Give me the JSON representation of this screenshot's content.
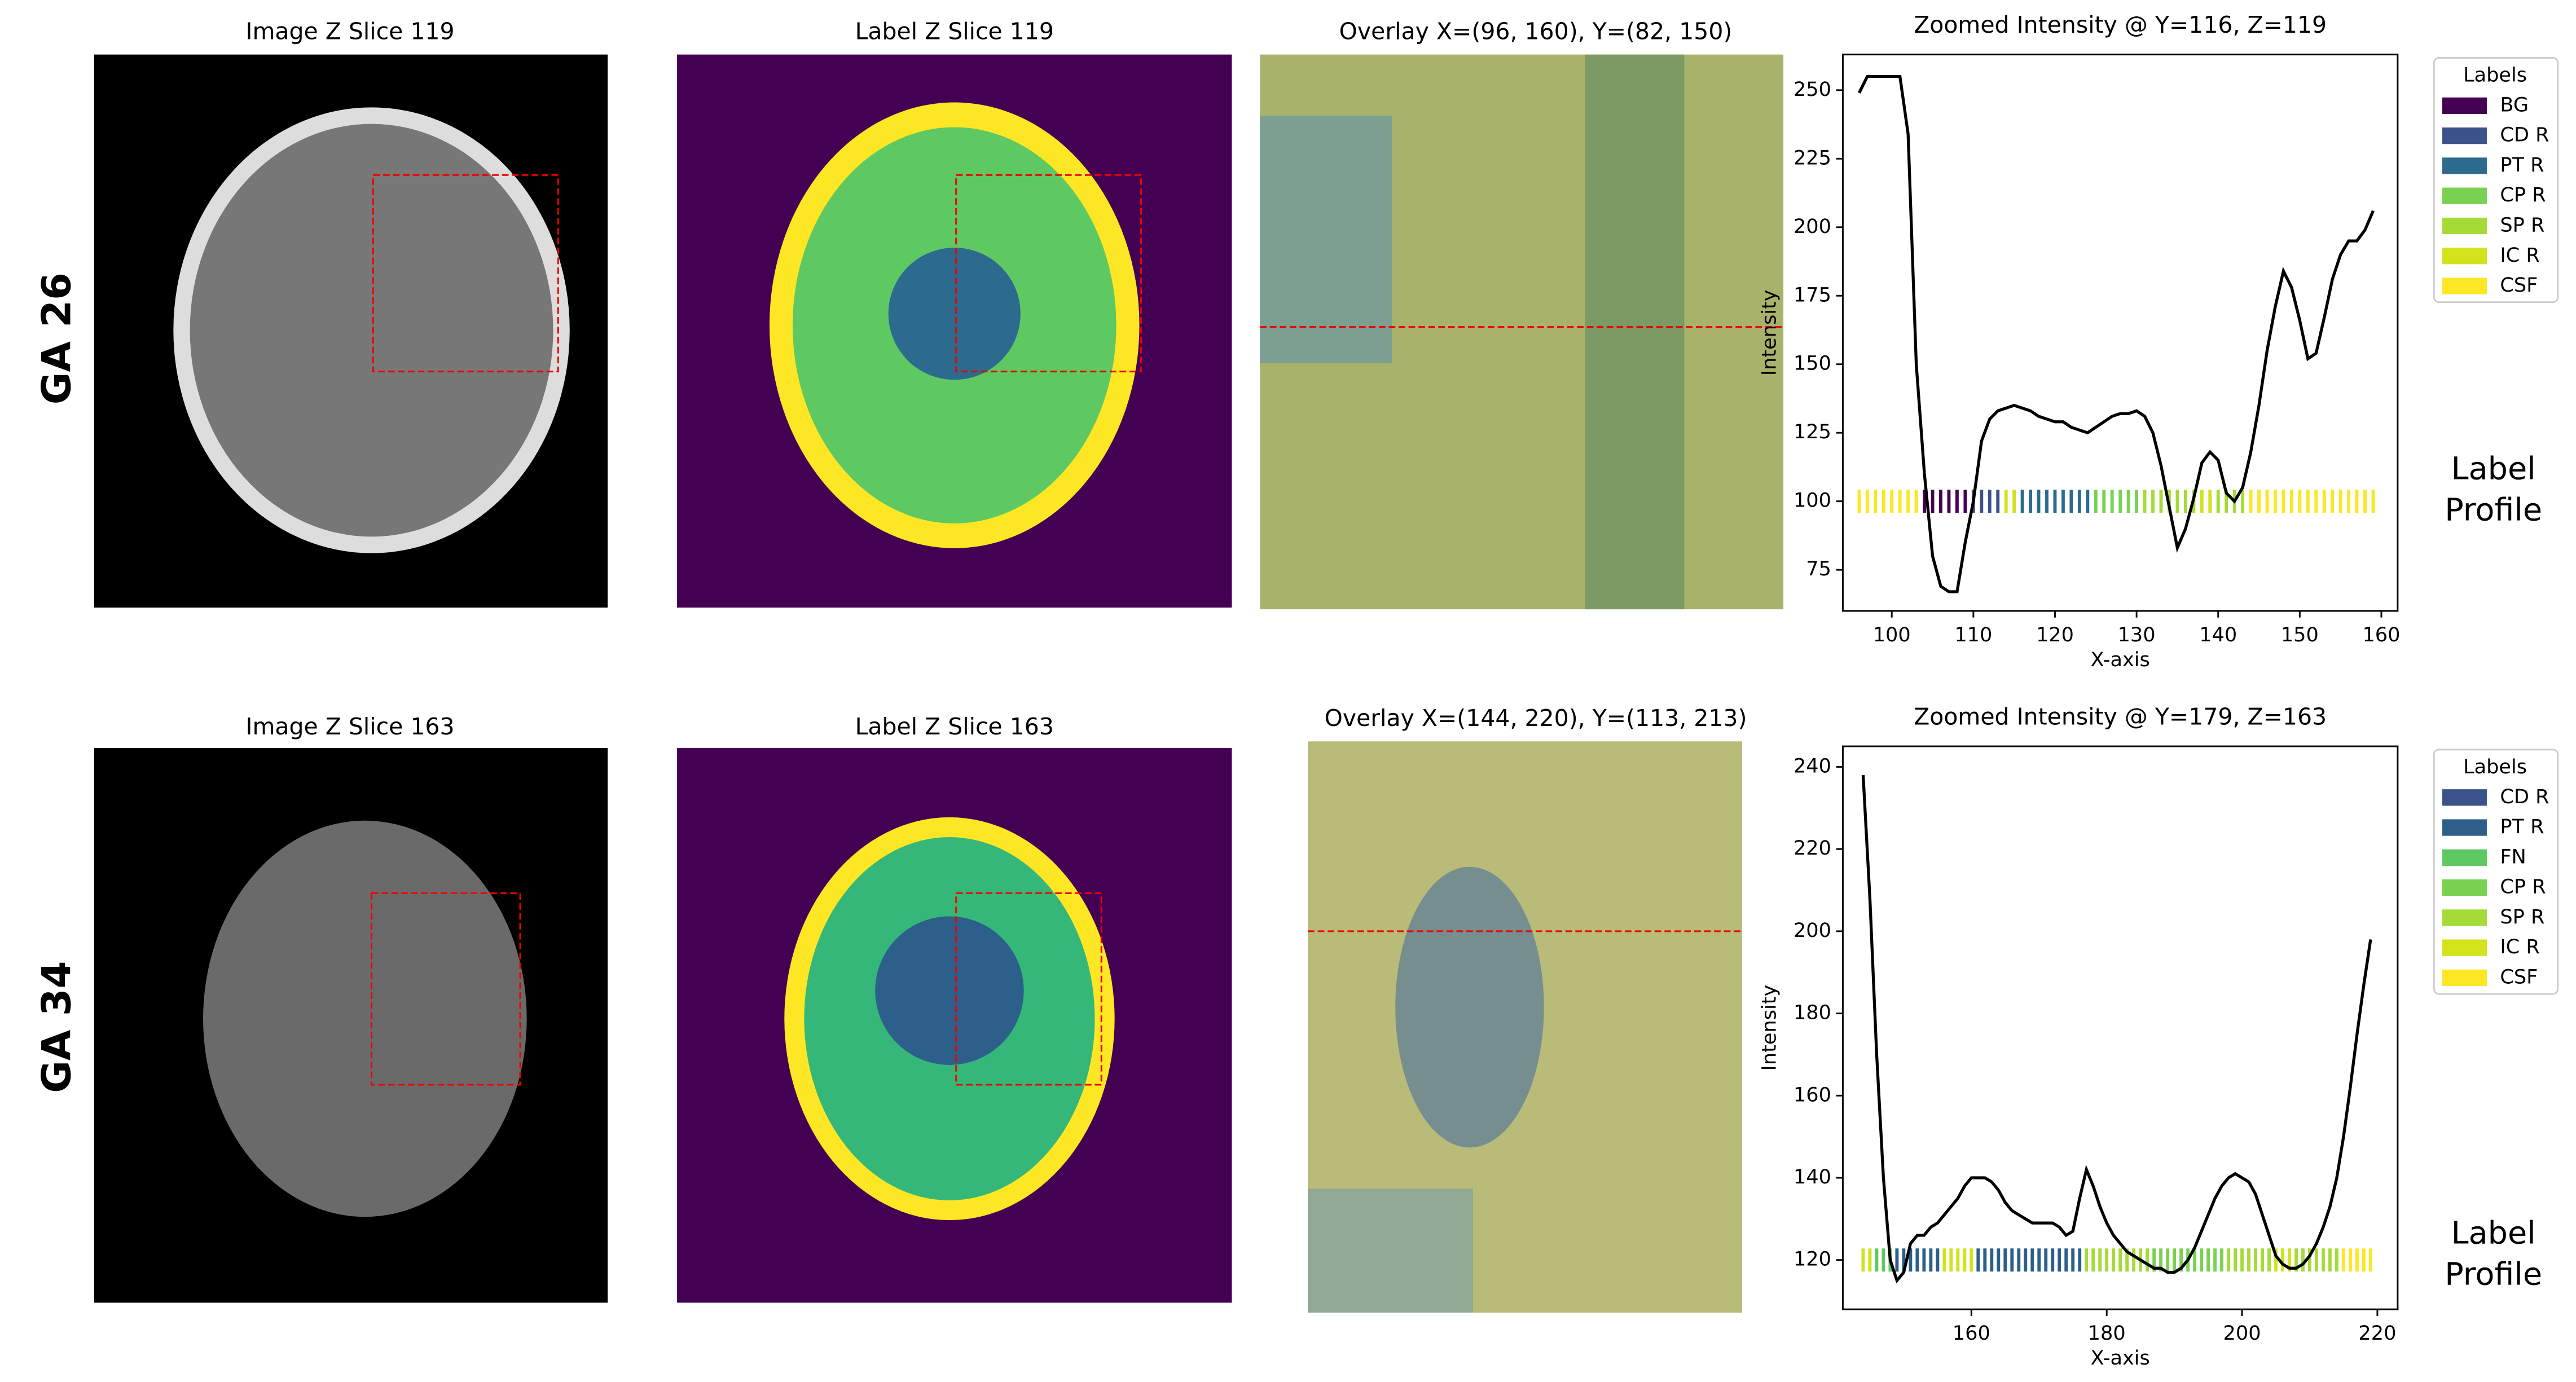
{
  "rows": [
    {
      "row_label": "GA 26",
      "image_title": "Image Z Slice 119",
      "label_title": "Label Z Slice 119",
      "overlay_title": "Overlay X=(96, 160), Y=(82, 150)",
      "side_label": [
        "Label",
        "Profile"
      ]
    },
    {
      "row_label": "GA 34",
      "image_title": "Image Z Slice 163",
      "label_title": "Label Z Slice 163",
      "overlay_title": "Overlay X=(144, 220), Y=(113, 213)",
      "side_label": [
        "Label",
        "Profile"
      ]
    }
  ],
  "chart_data": [
    {
      "type": "line",
      "title": "Zoomed Intensity @ Y=116, Z=119",
      "xlabel": "X-axis",
      "ylabel": "Intensity",
      "x": [
        96,
        97,
        98,
        99,
        100,
        101,
        102,
        103,
        104,
        105,
        106,
        107,
        108,
        109,
        110,
        111,
        112,
        113,
        114,
        115,
        116,
        117,
        118,
        119,
        120,
        121,
        122,
        123,
        124,
        125,
        126,
        127,
        128,
        129,
        130,
        131,
        132,
        133,
        134,
        135,
        136,
        137,
        138,
        139,
        140,
        141,
        142,
        143,
        144,
        145,
        146,
        147,
        148,
        149,
        150,
        151,
        152,
        153,
        154,
        155,
        156,
        157,
        158,
        159
      ],
      "series": [
        {
          "color": "#000000",
          "values": [
            249,
            255,
            255,
            255,
            255,
            255,
            234,
            150,
            110,
            80,
            69,
            67,
            67,
            85,
            100,
            122,
            130,
            133,
            134,
            135,
            134,
            133,
            131,
            130,
            129,
            129,
            127,
            126,
            125,
            127,
            129,
            131,
            132,
            132,
            133,
            131,
            125,
            113,
            98,
            83,
            90,
            101,
            114,
            118,
            115,
            103,
            100,
            105,
            118,
            135,
            155,
            171,
            184,
            178,
            166,
            152,
            154,
            167,
            181,
            190,
            195,
            195,
            199,
            206
          ]
        }
      ],
      "xlim": [
        94,
        162
      ],
      "xticks": [
        100,
        110,
        120,
        130,
        140,
        150,
        160
      ],
      "ylim": [
        60,
        263
      ],
      "yticks": [
        75,
        100,
        125,
        150,
        175,
        200,
        225,
        250
      ],
      "legend_title": "Labels",
      "legend": [
        {
          "name": "BG",
          "color": "#440154"
        },
        {
          "name": "CD R",
          "color": "#3b528b"
        },
        {
          "name": "PT R",
          "color": "#2c6a8e"
        },
        {
          "name": "CP R",
          "color": "#7ad151"
        },
        {
          "name": "SP R",
          "color": "#a5db36"
        },
        {
          "name": "IC R",
          "color": "#d2e21b"
        },
        {
          "name": "CSF",
          "color": "#fde725"
        }
      ],
      "profile_y": 100,
      "profile": [
        "CSF",
        "CSF",
        "CSF",
        "CSF",
        "CSF",
        "CSF",
        "CSF",
        "CSF",
        "BG",
        "BG",
        "BG",
        "BG",
        "BG",
        "BG",
        "CD R",
        "CD R",
        "CD R",
        "CD R",
        "IC R",
        "IC R",
        "PT R",
        "PT R",
        "PT R",
        "PT R",
        "PT R",
        "PT R",
        "PT R",
        "PT R",
        "PT R",
        "CP R",
        "CP R",
        "CP R",
        "CP R",
        "CP R",
        "CP R",
        "SP R",
        "SP R",
        "SP R",
        "SP R",
        "SP R",
        "SP R",
        "SP R",
        "IC R",
        "IC R",
        "SP R",
        "SP R",
        "SP R",
        "SP R",
        "CSF",
        "CSF",
        "CSF",
        "CSF",
        "CSF",
        "CSF",
        "CSF",
        "CSF",
        "CSF",
        "CSF",
        "CSF",
        "CSF",
        "CSF",
        "CSF",
        "CSF",
        "CSF"
      ]
    },
    {
      "type": "line",
      "title": "Zoomed Intensity @ Y=179, Z=163",
      "xlabel": "X-axis",
      "ylabel": "Intensity",
      "x": [
        144,
        145,
        146,
        147,
        148,
        149,
        150,
        151,
        152,
        153,
        154,
        155,
        156,
        157,
        158,
        159,
        160,
        161,
        162,
        163,
        164,
        165,
        166,
        167,
        168,
        169,
        170,
        171,
        172,
        173,
        174,
        175,
        176,
        177,
        178,
        179,
        180,
        181,
        182,
        183,
        184,
        185,
        186,
        187,
        188,
        189,
        190,
        191,
        192,
        193,
        194,
        195,
        196,
        197,
        198,
        199,
        200,
        201,
        202,
        203,
        204,
        205,
        206,
        207,
        208,
        209,
        210,
        211,
        212,
        213,
        214,
        215,
        216,
        217,
        218,
        219
      ],
      "series": [
        {
          "color": "#000000",
          "values": [
            238,
            208,
            170,
            140,
            120,
            115,
            117,
            124,
            126,
            126,
            128,
            129,
            131,
            133,
            135,
            138,
            140,
            140,
            140,
            139,
            137,
            134,
            132,
            131,
            130,
            129,
            129,
            129,
            129,
            128,
            126,
            127,
            135,
            142,
            138,
            133,
            129,
            126,
            124,
            122,
            121,
            120,
            119,
            118,
            118,
            117,
            117,
            118,
            120,
            123,
            127,
            131,
            135,
            138,
            140,
            141,
            140,
            139,
            136,
            131,
            126,
            121,
            119,
            118,
            118,
            119,
            121,
            124,
            128,
            133,
            140,
            150,
            162,
            175,
            187,
            198
          ]
        }
      ],
      "xlim": [
        141,
        223
      ],
      "xticks": [
        160,
        180,
        200,
        220
      ],
      "ylim": [
        108,
        245
      ],
      "yticks": [
        120,
        140,
        160,
        180,
        200,
        220,
        240
      ],
      "legend_title": "Labels",
      "legend": [
        {
          "name": "CD R",
          "color": "#3b528b"
        },
        {
          "name": "PT R",
          "color": "#2c5f8a"
        },
        {
          "name": "FN",
          "color": "#5ec962"
        },
        {
          "name": "CP R",
          "color": "#7ad151"
        },
        {
          "name": "SP R",
          "color": "#a5db36"
        },
        {
          "name": "IC R",
          "color": "#d2e21b"
        },
        {
          "name": "CSF",
          "color": "#fde725"
        }
      ],
      "profile_y": 120,
      "profile": [
        "IC R",
        "IC R",
        "FN",
        "FN",
        "FN",
        "PT R",
        "PT R",
        "PT R",
        "PT R",
        "PT R",
        "PT R",
        "PT R",
        "IC R",
        "IC R",
        "IC R",
        "IC R",
        "IC R",
        "PT R",
        "PT R",
        "PT R",
        "PT R",
        "PT R",
        "PT R",
        "PT R",
        "PT R",
        "PT R",
        "PT R",
        "PT R",
        "PT R",
        "PT R",
        "PT R",
        "PT R",
        "PT R",
        "SP R",
        "SP R",
        "SP R",
        "SP R",
        "SP R",
        "SP R",
        "SP R",
        "SP R",
        "SP R",
        "SP R",
        "CP R",
        "CP R",
        "CP R",
        "CP R",
        "CP R",
        "CP R",
        "CP R",
        "CP R",
        "CP R",
        "CP R",
        "CP R",
        "SP R",
        "SP R",
        "SP R",
        "SP R",
        "SP R",
        "SP R",
        "SP R",
        "IC R",
        "IC R",
        "IC R",
        "SP R",
        "SP R",
        "SP R",
        "SP R",
        "SP R",
        "SP R",
        "SP R",
        "CSF",
        "CSF",
        "CSF",
        "CSF",
        "CSF"
      ]
    }
  ]
}
